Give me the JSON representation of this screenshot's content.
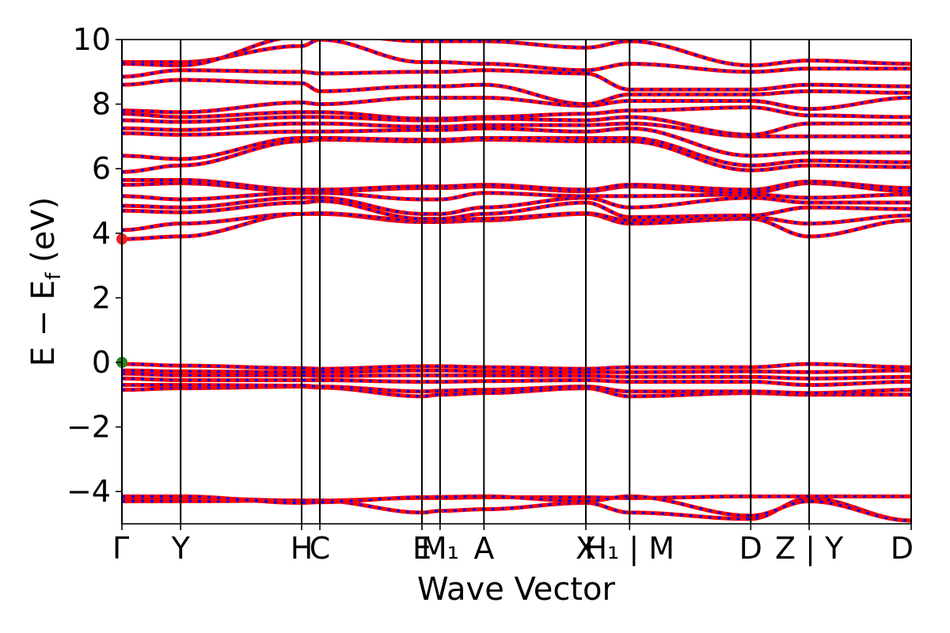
{
  "chart_data": {
    "type": "line",
    "title": "",
    "xlabel": "Wave Vector",
    "ylabel": "E − E_f (eV)",
    "ylabel_parts": {
      "main": "E − E",
      "sub": "f",
      "unit": " (eV)"
    },
    "ylim": [
      -5,
      10
    ],
    "yticks": [
      -4,
      -2,
      0,
      2,
      4,
      6,
      8,
      10
    ],
    "ytick_labels": [
      "−4",
      "−2",
      "0",
      "2",
      "4",
      "6",
      "8",
      "10"
    ],
    "grid": false,
    "kpoints": [
      {
        "label": "Γ",
        "x": 0.0
      },
      {
        "label": "Y",
        "x": 0.0744
      },
      {
        "label": "H",
        "x": 0.2277
      },
      {
        "label": "C",
        "x": 0.2508
      },
      {
        "label": "E",
        "x": 0.3801
      },
      {
        "label": "M₁",
        "x": 0.4031
      },
      {
        "label": "A",
        "x": 0.4587
      },
      {
        "label": "X",
        "x": 0.5878
      },
      {
        "label": "H₁ | M",
        "x": 0.6432
      },
      {
        "label": "D",
        "x": 0.7967
      },
      {
        "label": "Z | Y",
        "x": 0.8707
      },
      {
        "label": "D",
        "x": 1.0
      }
    ],
    "segments_x": [
      0.0,
      0.0744,
      0.2277,
      0.2508,
      0.3801,
      0.4031,
      0.4587,
      0.5878,
      0.6432,
      0.7967,
      0.8707,
      1.0
    ],
    "series": [
      {
        "color": "#ff0000",
        "style": "solid"
      },
      {
        "color": "#0000ff",
        "style": "dashed"
      }
    ],
    "bands": [
      [
        -4.3,
        -4.3,
        -4.28,
        -4.28,
        -4.65,
        -4.6,
        -4.55,
        -4.35,
        -4.65,
        -4.85,
        -4.2,
        -4.9
      ],
      [
        -4.2,
        -4.2,
        -4.28,
        -4.28,
        -4.2,
        -4.2,
        -4.18,
        -4.18,
        -4.2,
        -4.15,
        -4.15,
        -4.15
      ],
      [
        -4.15,
        -4.15,
        -4.35,
        -4.33,
        -4.18,
        -4.17,
        -4.15,
        -4.3,
        -4.15,
        -4.75,
        -4.3,
        -4.9
      ],
      [
        -0.85,
        -0.8,
        -0.75,
        -0.78,
        -1.05,
        -1.0,
        -0.95,
        -0.8,
        -1.05,
        -0.95,
        -1.0,
        -1.0
      ],
      [
        -0.7,
        -0.7,
        -0.72,
        -0.75,
        -0.9,
        -0.88,
        -0.85,
        -0.75,
        -0.9,
        -0.9,
        -0.95,
        -0.85
      ],
      [
        -0.5,
        -0.55,
        -0.55,
        -0.55,
        -0.6,
        -0.6,
        -0.58,
        -0.55,
        -0.6,
        -0.6,
        -0.7,
        -0.6
      ],
      [
        -0.35,
        -0.4,
        -0.4,
        -0.42,
        -0.4,
        -0.4,
        -0.4,
        -0.42,
        -0.45,
        -0.45,
        -0.5,
        -0.45
      ],
      [
        -0.25,
        -0.28,
        -0.3,
        -0.3,
        -0.25,
        -0.25,
        -0.28,
        -0.3,
        -0.3,
        -0.28,
        -0.3,
        -0.25
      ],
      [
        -0.05,
        -0.1,
        -0.18,
        -0.2,
        -0.12,
        -0.12,
        -0.15,
        -0.2,
        -0.15,
        -0.15,
        -0.05,
        -0.15
      ],
      [
        3.82,
        3.9,
        4.6,
        4.6,
        4.35,
        4.35,
        4.4,
        4.6,
        4.3,
        4.45,
        3.9,
        4.4
      ],
      [
        4.1,
        4.3,
        4.6,
        4.62,
        4.4,
        4.4,
        4.45,
        4.62,
        4.4,
        4.5,
        4.3,
        4.55
      ],
      [
        4.7,
        4.65,
        4.95,
        5.0,
        4.45,
        4.45,
        4.6,
        4.95,
        4.5,
        4.55,
        4.8,
        4.75
      ],
      [
        4.85,
        4.8,
        5.1,
        5.1,
        4.6,
        4.6,
        4.8,
        5.1,
        4.8,
        5.1,
        4.95,
        4.95
      ],
      [
        5.15,
        5.05,
        5.25,
        5.25,
        5.05,
        5.05,
        5.25,
        5.15,
        5.15,
        5.2,
        5.1,
        5.2
      ],
      [
        5.5,
        5.55,
        5.3,
        5.3,
        5.4,
        5.4,
        5.45,
        5.3,
        5.45,
        5.25,
        5.55,
        5.3
      ],
      [
        5.65,
        5.65,
        5.35,
        5.35,
        5.45,
        5.45,
        5.5,
        5.35,
        5.5,
        5.35,
        5.6,
        5.4
      ],
      [
        5.9,
        6.1,
        6.85,
        6.9,
        6.85,
        6.85,
        6.9,
        6.85,
        6.85,
        5.95,
        6.1,
        6.05
      ],
      [
        6.4,
        6.3,
        6.95,
        6.95,
        6.9,
        6.9,
        6.95,
        6.95,
        6.95,
        6.1,
        6.25,
        6.2
      ],
      [
        7.1,
        7.05,
        7.15,
        7.15,
        7.2,
        7.2,
        7.25,
        7.15,
        7.25,
        6.4,
        6.5,
        6.5
      ],
      [
        7.25,
        7.2,
        7.4,
        7.4,
        7.3,
        7.3,
        7.35,
        7.35,
        7.4,
        7.0,
        7.0,
        7.0
      ],
      [
        7.5,
        7.45,
        7.6,
        7.6,
        7.5,
        7.5,
        7.55,
        7.5,
        7.6,
        7.05,
        7.4,
        7.4
      ],
      [
        7.7,
        7.6,
        7.75,
        7.75,
        7.55,
        7.55,
        7.6,
        7.7,
        7.8,
        7.9,
        7.65,
        7.6
      ],
      [
        7.8,
        7.75,
        8.05,
        8.0,
        8.2,
        8.2,
        8.2,
        7.95,
        8.1,
        8.1,
        7.85,
        8.2
      ],
      [
        8.6,
        8.75,
        8.65,
        8.4,
        8.55,
        8.55,
        8.6,
        8.0,
        8.3,
        8.3,
        8.4,
        8.35
      ],
      [
        8.85,
        9.05,
        9.0,
        8.95,
        9.0,
        9.0,
        9.05,
        8.95,
        8.45,
        8.45,
        8.6,
        8.55
      ],
      [
        9.3,
        9.3,
        9.8,
        10.0,
        9.3,
        9.3,
        9.25,
        9.05,
        9.25,
        9.0,
        9.1,
        9.1
      ],
      [
        9.25,
        9.2,
        10.1,
        10.2,
        9.95,
        9.95,
        9.95,
        9.75,
        9.95,
        9.2,
        9.35,
        9.25
      ]
    ],
    "markers": [
      {
        "x": 0.0,
        "y": 3.82,
        "color": "#ee2222"
      },
      {
        "x": 0.0,
        "y": 0.0,
        "color": "#228822"
      }
    ]
  }
}
